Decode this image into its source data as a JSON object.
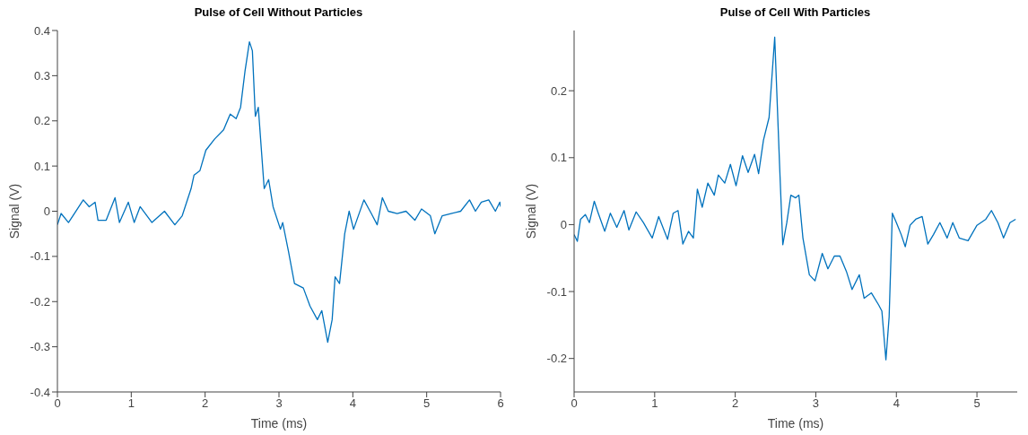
{
  "chart_data": [
    {
      "type": "line",
      "title": "Pulse of Cell Without Particles",
      "xlabel": "Time (ms)",
      "ylabel": "Signal (V)",
      "color": "#0072bd",
      "xlim": [
        0,
        6
      ],
      "xticks": [
        0,
        1,
        2,
        3,
        4,
        5,
        6
      ],
      "ylim": [
        -0.4,
        0.4
      ],
      "yticks": [
        -0.4,
        -0.3,
        -0.2,
        -0.1,
        0,
        0.1,
        0.2,
        0.3,
        0.4
      ],
      "grid": false,
      "legend": false,
      "x": [
        0,
        0.05,
        0.15,
        0.21,
        0.35,
        0.43,
        0.51,
        0.55,
        0.66,
        0.78,
        0.84,
        0.96,
        1.04,
        1.12,
        1.28,
        1.45,
        1.59,
        1.69,
        1.81,
        1.85,
        1.93,
        2.01,
        2.13,
        2.25,
        2.34,
        2.42,
        2.48,
        2.54,
        2.6,
        2.64,
        2.68,
        2.72,
        2.8,
        2.86,
        2.92,
        3.02,
        3.05,
        3.13,
        3.21,
        3.33,
        3.42,
        3.52,
        3.58,
        3.66,
        3.72,
        3.76,
        3.82,
        3.89,
        3.95,
        4.01,
        4.15,
        4.25,
        4.33,
        4.4,
        4.48,
        4.6,
        4.72,
        4.84,
        4.93,
        5.05,
        5.11,
        5.21,
        5.33,
        5.46,
        5.58,
        5.66,
        5.74,
        5.84,
        5.93,
        5.99,
        6.0
      ],
      "values": [
        -0.03,
        -0.005,
        -0.025,
        -0.01,
        0.025,
        0.01,
        0.02,
        -0.02,
        -0.02,
        0.03,
        -0.025,
        0.02,
        -0.025,
        0.01,
        -0.025,
        0.0,
        -0.03,
        -0.01,
        0.05,
        0.08,
        0.09,
        0.135,
        0.16,
        0.18,
        0.215,
        0.205,
        0.23,
        0.31,
        0.375,
        0.355,
        0.21,
        0.23,
        0.05,
        0.07,
        0.01,
        -0.04,
        -0.025,
        -0.09,
        -0.16,
        -0.17,
        -0.21,
        -0.24,
        -0.22,
        -0.29,
        -0.24,
        -0.145,
        -0.16,
        -0.05,
        0.0,
        -0.04,
        0.025,
        -0.005,
        -0.03,
        0.03,
        0.0,
        -0.005,
        0.0,
        -0.02,
        0.005,
        -0.01,
        -0.05,
        -0.01,
        -0.005,
        0.0,
        0.025,
        0.0,
        0.02,
        0.025,
        0.0,
        0.02,
        0.01
      ]
    },
    {
      "type": "line",
      "title": "Pulse of Cell With Particles",
      "xlabel": "Time (ms)",
      "ylabel": "Signal (V)",
      "color": "#0072bd",
      "xlim": [
        0,
        5.5
      ],
      "xticks": [
        0,
        1,
        2,
        3,
        4,
        5
      ],
      "ylim": [
        -0.25,
        0.29
      ],
      "yticks": [
        -0.2,
        -0.1,
        0,
        0.1,
        0.2
      ],
      "grid": false,
      "legend": false,
      "x": [
        0,
        0.04,
        0.08,
        0.14,
        0.19,
        0.25,
        0.3,
        0.38,
        0.45,
        0.53,
        0.62,
        0.68,
        0.77,
        0.86,
        0.97,
        1.05,
        1.16,
        1.23,
        1.29,
        1.35,
        1.42,
        1.48,
        1.53,
        1.59,
        1.66,
        1.74,
        1.79,
        1.87,
        1.94,
        2.01,
        2.09,
        2.16,
        2.24,
        2.29,
        2.35,
        2.42,
        2.49,
        2.55,
        2.59,
        2.64,
        2.69,
        2.75,
        2.79,
        2.84,
        2.92,
        2.99,
        3.08,
        3.15,
        3.23,
        3.3,
        3.38,
        3.45,
        3.54,
        3.6,
        3.69,
        3.78,
        3.82,
        3.87,
        3.91,
        3.95,
        4.0,
        4.06,
        4.11,
        4.17,
        4.24,
        4.32,
        4.39,
        4.46,
        4.54,
        4.63,
        4.7,
        4.78,
        4.89,
        5.0,
        5.11,
        5.18,
        5.26,
        5.33,
        5.41,
        5.48
      ],
      "values": [
        -0.015,
        -0.025,
        0.008,
        0.015,
        0.003,
        0.035,
        0.017,
        -0.01,
        0.017,
        -0.004,
        0.021,
        -0.008,
        0.019,
        0.003,
        -0.02,
        0.012,
        -0.022,
        0.017,
        0.021,
        -0.029,
        -0.01,
        -0.02,
        0.053,
        0.026,
        0.062,
        0.044,
        0.074,
        0.062,
        0.09,
        0.058,
        0.103,
        0.078,
        0.105,
        0.076,
        0.126,
        0.16,
        0.28,
        0.09,
        -0.03,
        0.003,
        0.044,
        0.04,
        0.044,
        -0.02,
        -0.075,
        -0.084,
        -0.043,
        -0.066,
        -0.047,
        -0.047,
        -0.07,
        -0.097,
        -0.075,
        -0.11,
        -0.102,
        -0.12,
        -0.129,
        -0.202,
        -0.138,
        0.017,
        0.003,
        -0.015,
        -0.033,
        -0.001,
        0.008,
        0.012,
        -0.029,
        -0.015,
        0.003,
        -0.02,
        0.003,
        -0.02,
        -0.024,
        -0.001,
        0.008,
        0.021,
        0.003,
        -0.02,
        0.003,
        0.008
      ]
    }
  ]
}
